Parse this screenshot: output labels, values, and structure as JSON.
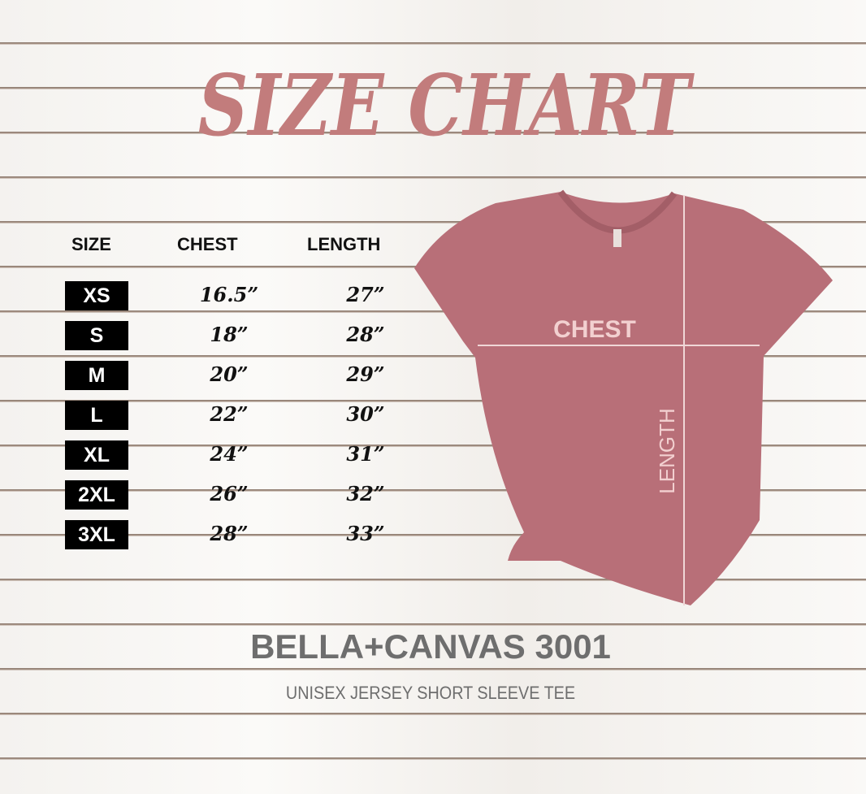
{
  "title": "SIZE CHART",
  "table": {
    "headers": [
      "SIZE",
      "CHEST",
      "LENGTH"
    ],
    "rows": [
      {
        "size": "XS",
        "chest": "16.5”",
        "length": "27”"
      },
      {
        "size": "S",
        "chest": "18”",
        "length": "28”"
      },
      {
        "size": "M",
        "chest": "20”",
        "length": "29”"
      },
      {
        "size": "L",
        "chest": "22”",
        "length": "30”"
      },
      {
        "size": "XL",
        "chest": "24”",
        "length": "31”"
      },
      {
        "size": "2XL",
        "chest": "26”",
        "length": "32”"
      },
      {
        "size": "3XL",
        "chest": "28”",
        "length": "33”"
      }
    ]
  },
  "shirt": {
    "chest_label": "CHEST",
    "length_label": "LENGTH",
    "color": "#b86f78"
  },
  "brand": "BELLA+CANVAS 3001",
  "subtitle": "UNISEX JERSEY SHORT SLEEVE TEE",
  "colors": {
    "title": "#c27c7c",
    "text_gray": "#6e6e6e"
  }
}
